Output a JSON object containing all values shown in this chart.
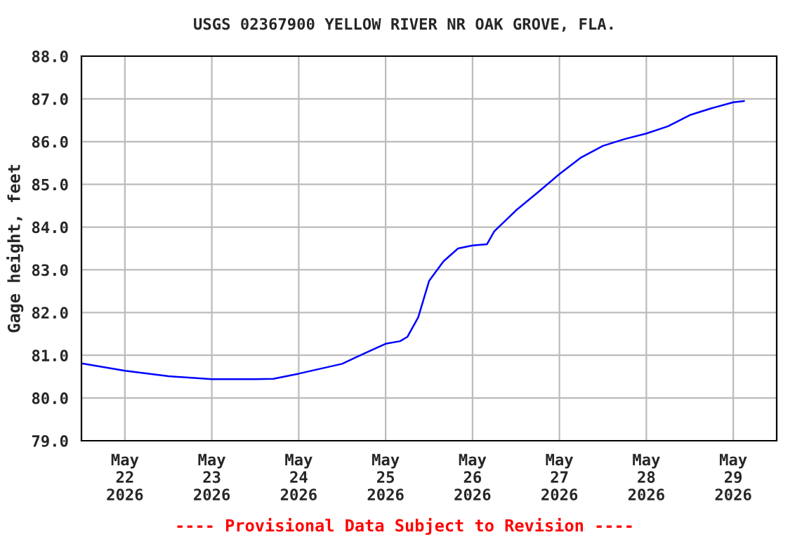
{
  "chart_data": {
    "type": "line",
    "title": "USGS 02367900 YELLOW RIVER NR OAK GROVE, FLA.",
    "ylabel": "Gage height, feet",
    "x": [
      "2026-05-21T12:00",
      "2026-05-22T00:00",
      "2026-05-22T12:00",
      "2026-05-23T00:00",
      "2026-05-23T12:00",
      "2026-05-23T17:00",
      "2026-05-24T00:00",
      "2026-05-24T12:00",
      "2026-05-24T18:00",
      "2026-05-25T00:00",
      "2026-05-25T04:00",
      "2026-05-25T06:00",
      "2026-05-25T09:00",
      "2026-05-25T12:00",
      "2026-05-25T16:00",
      "2026-05-25T20:00",
      "2026-05-26T00:00",
      "2026-05-26T04:00",
      "2026-05-26T06:00",
      "2026-05-26T12:00",
      "2026-05-26T18:00",
      "2026-05-27T00:00",
      "2026-05-27T06:00",
      "2026-05-27T12:00",
      "2026-05-27T18:00",
      "2026-05-28T00:00",
      "2026-05-28T06:00",
      "2026-05-28T12:00",
      "2026-05-28T18:00",
      "2026-05-29T00:00",
      "2026-05-29T03:00"
    ],
    "series": [
      {
        "color": "#0000ff",
        "values": [
          80.81,
          80.64,
          80.51,
          80.44,
          80.44,
          80.45,
          80.57,
          80.8,
          81.04,
          81.27,
          81.33,
          81.43,
          81.89,
          82.74,
          83.2,
          83.5,
          83.57,
          83.6,
          83.9,
          84.39,
          84.81,
          85.24,
          85.63,
          85.9,
          86.06,
          86.19,
          86.36,
          86.62,
          86.78,
          86.92,
          86.95
        ]
      }
    ],
    "xlim": [
      "2026-05-21T12:00",
      "2026-05-29T12:00"
    ],
    "xticks": [
      {
        "value": "2026-05-22",
        "label": "May\n22\n2026"
      },
      {
        "value": "2026-05-23",
        "label": "May\n23\n2026"
      },
      {
        "value": "2026-05-24",
        "label": "May\n24\n2026"
      },
      {
        "value": "2026-05-25",
        "label": "May\n25\n2026"
      },
      {
        "value": "2026-05-26",
        "label": "May\n26\n2026"
      },
      {
        "value": "2026-05-27",
        "label": "May\n27\n2026"
      },
      {
        "value": "2026-05-28",
        "label": "May\n28\n2026"
      },
      {
        "value": "2026-05-29",
        "label": "May\n29\n2026"
      }
    ],
    "ylim": [
      79,
      88
    ],
    "yticks": [
      {
        "value": 79,
        "label": "79.0"
      },
      {
        "value": 80,
        "label": "80.0"
      },
      {
        "value": 81,
        "label": "81.0"
      },
      {
        "value": 82,
        "label": "82.0"
      },
      {
        "value": 83,
        "label": "83.0"
      },
      {
        "value": 84,
        "label": "84.0"
      },
      {
        "value": 85,
        "label": "85.0"
      },
      {
        "value": 86,
        "label": "86.0"
      },
      {
        "value": 87,
        "label": "87.0"
      },
      {
        "value": 88,
        "label": "88.0"
      }
    ],
    "grid": true,
    "legend": false,
    "marker": "none",
    "line_style": "solid",
    "annotations": [
      "---- Provisional Data Subject to Revision ----"
    ]
  }
}
